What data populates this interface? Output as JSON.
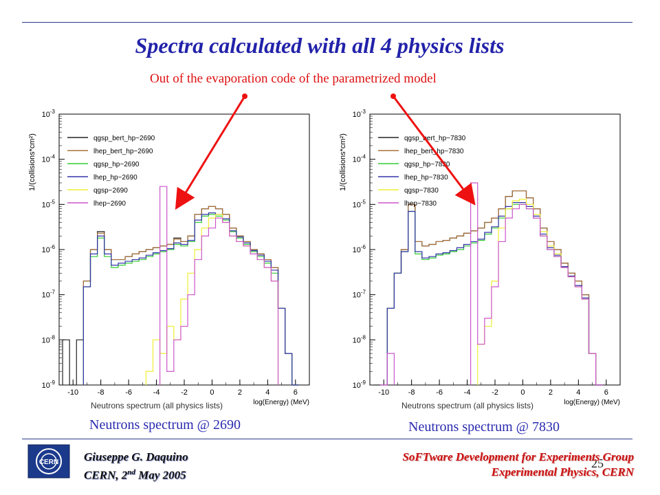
{
  "slide": {
    "title": "Spectra calculated with all 4 physics lists",
    "annotation": "Out of the evaporation code of the parametrized model",
    "page_number": "25",
    "footer_left": {
      "author": "Giuseppe G. Daquino",
      "place": "CERN, 2",
      "superscript": "nd",
      "date_rest": " May 2005"
    },
    "footer_right": {
      "line1": "SoFTware Development for Experiments Group",
      "line2": "Experimental Physics, CERN"
    },
    "logo_text": "CERN",
    "captions": [
      "Neutrons spectrum @ 2690",
      "Neutrons spectrum @ 7830"
    ],
    "colors": {
      "title": "#2222aa",
      "annotation": "#dd1111",
      "arrow": "#ee1111",
      "footer_right": "#cc1111",
      "caption": "#2a2ab0"
    }
  },
  "chart_data": [
    {
      "type": "line",
      "title": "Neutrons spectrum (all physics lists)",
      "xlabel": "log(Energy) (MeV)",
      "ylabel": "1/(collisions*cm²)",
      "y_scale": "log",
      "xlim": [
        -11,
        7
      ],
      "ylim": [
        1e-09,
        0.001
      ],
      "x_ticks": [
        -10,
        -8,
        -6,
        -4,
        -2,
        0,
        2,
        4,
        6
      ],
      "y_ticks": [
        "10^-9",
        "10^-8",
        "10^-7",
        "10^-6",
        "10^-5",
        "10^-4",
        "10^-3"
      ],
      "legend_position": "top-left",
      "x": [
        -10.5,
        -10,
        -9.5,
        -9,
        -8.5,
        -8,
        -7.5,
        -7,
        -6.5,
        -6,
        -5.5,
        -5,
        -4.5,
        -4,
        -3.5,
        -3,
        -2.5,
        -2,
        -1.5,
        -1,
        -0.5,
        0,
        0.5,
        1,
        1.5,
        2,
        2.5,
        3,
        3.5,
        4,
        4.5,
        5,
        5.5,
        6
      ],
      "series": [
        {
          "name": "qgsp_bert_hp−2690",
          "color": "#222222",
          "values": [
            1e-08,
            1e-09,
            1e-08,
            2e-07,
            1e-06,
            2.5e-06,
            1e-06,
            6e-07,
            6e-07,
            7e-07,
            8e-07,
            9e-07,
            1e-06,
            1.1e-06,
            1.2e-06,
            1.3e-06,
            1.8e-06,
            1.5e-06,
            2e-06,
            6e-06,
            8e-06,
            9e-06,
            8e-06,
            6e-06,
            3e-06,
            2e-06,
            1.5e-06,
            1e-06,
            8e-07,
            6e-07,
            4e-07,
            5e-08,
            5e-09,
            1e-09
          ]
        },
        {
          "name": "lhep_bert_hp−2690",
          "color": "#a8703a",
          "values": [
            null,
            null,
            null,
            2e-07,
            1e-06,
            2.3e-06,
            1e-06,
            6e-07,
            6e-07,
            7e-07,
            8e-07,
            9e-07,
            1e-06,
            1.1e-06,
            1.2e-06,
            1.3e-06,
            1.7e-06,
            1.5e-06,
            2e-06,
            6e-06,
            8e-06,
            9e-06,
            8e-06,
            6e-06,
            3e-06,
            2e-06,
            1.5e-06,
            1e-06,
            8e-07,
            6e-07,
            4e-07,
            5e-08,
            5e-09,
            1e-09
          ]
        },
        {
          "name": "qgsp_hp−2690",
          "color": "#33cc33",
          "values": [
            null,
            null,
            null,
            1.5e-07,
            7e-07,
            1.8e-06,
            7e-07,
            4e-07,
            4.5e-07,
            5e-07,
            5.5e-07,
            6e-07,
            7e-07,
            8e-07,
            9e-07,
            1e-06,
            1.3e-06,
            1.2e-06,
            1.5e-06,
            4e-06,
            5.5e-06,
            6e-06,
            5.5e-06,
            4.5e-06,
            2.5e-06,
            1.8e-06,
            1.3e-06,
            9e-07,
            7e-07,
            5e-07,
            3e-07,
            5e-08,
            5e-09,
            1e-09
          ]
        },
        {
          "name": "lhep_hp−2690",
          "color": "#3333aa",
          "values": [
            null,
            null,
            null,
            1.5e-07,
            8e-07,
            2e-06,
            8e-07,
            4.5e-07,
            5e-07,
            5.5e-07,
            6e-07,
            6.5e-07,
            7.5e-07,
            8.5e-07,
            9.5e-07,
            1.05e-06,
            1.4e-06,
            1.3e-06,
            1.6e-06,
            4.5e-06,
            6e-06,
            6.5e-06,
            6e-06,
            4.8e-06,
            2.6e-06,
            1.9e-06,
            1.4e-06,
            9.5e-07,
            7.5e-07,
            5.5e-07,
            3.5e-07,
            5e-08,
            5e-09,
            1e-09
          ]
        },
        {
          "name": "qgsp−2690",
          "color": "#eeee33",
          "values": [
            null,
            null,
            null,
            null,
            null,
            null,
            null,
            null,
            null,
            null,
            null,
            null,
            2e-09,
            1e-08,
            5e-09,
            2e-08,
            1e-08,
            8e-08,
            3e-07,
            1e-06,
            3e-06,
            5e-06,
            6e-06,
            4e-06,
            2e-06,
            1.5e-06,
            1.2e-06,
            8e-07,
            6e-07,
            4e-07,
            2e-07,
            null,
            null,
            null
          ]
        },
        {
          "name": "lhep−2690",
          "color": "#cc55cc",
          "values": [
            null,
            null,
            null,
            null,
            null,
            null,
            null,
            null,
            null,
            null,
            null,
            null,
            null,
            null,
            2.5e-05,
            2e-09,
            1e-08,
            2e-08,
            1e-07,
            6e-07,
            2e-06,
            3e-06,
            5e-06,
            4e-06,
            2e-06,
            1.5e-06,
            1.2e-06,
            8e-07,
            6e-07,
            4e-07,
            2e-07,
            null,
            null,
            null
          ]
        }
      ]
    },
    {
      "type": "line",
      "title": "Neutrons spectrum (all physics lists)",
      "xlabel": "log(Energy) (MeV)",
      "ylabel": "1/(collisions*cm²)",
      "y_scale": "log",
      "xlim": [
        -11,
        7
      ],
      "ylim": [
        1e-09,
        0.001
      ],
      "x_ticks": [
        -10,
        -8,
        -6,
        -4,
        -2,
        0,
        2,
        4,
        6
      ],
      "y_ticks": [
        "10^-9",
        "10^-8",
        "10^-7",
        "10^-6",
        "10^-5",
        "10^-4",
        "10^-3"
      ],
      "legend_position": "top-left",
      "x": [
        -10.5,
        -10,
        -9.5,
        -9,
        -8.5,
        -8,
        -7.5,
        -7,
        -6.5,
        -6,
        -5.5,
        -5,
        -4.5,
        -4,
        -3.5,
        -3,
        -2.5,
        -2,
        -1.5,
        -1,
        -0.5,
        0,
        0.5,
        1,
        1.5,
        2,
        2.5,
        3,
        3.5,
        4,
        4.5,
        5,
        5.5,
        6
      ],
      "series": [
        {
          "name": "qgsp_bert_hp−7830",
          "color": "#222222",
          "values": [
            1e-09,
            1e-09,
            5e-08,
            3e-07,
            1e-06,
            1e-05,
            1.5e-06,
            1.2e-06,
            1.3e-06,
            1.5e-06,
            1.6e-06,
            1.8e-06,
            2e-06,
            2.3e-06,
            2.6e-06,
            3e-06,
            4e-06,
            5e-06,
            8e-06,
            1.5e-05,
            2e-05,
            2e-05,
            1.4e-05,
            8e-06,
            3e-06,
            1.5e-06,
            1e-06,
            5e-07,
            3e-07,
            2e-07,
            1e-07,
            5e-09,
            1e-09,
            null
          ]
        },
        {
          "name": "lhep_bert_hp−7830",
          "color": "#a8703a",
          "values": [
            null,
            null,
            5e-08,
            3e-07,
            1e-06,
            1e-05,
            1.5e-06,
            1.2e-06,
            1.3e-06,
            1.5e-06,
            1.6e-06,
            1.8e-06,
            2e-06,
            2.3e-06,
            2.6e-06,
            3e-06,
            4e-06,
            5e-06,
            8e-06,
            1.5e-05,
            2e-05,
            2e-05,
            1.4e-05,
            8e-06,
            3e-06,
            1.5e-06,
            1e-06,
            5e-07,
            3e-07,
            2e-07,
            1e-07,
            5e-09,
            1e-09,
            null
          ]
        },
        {
          "name": "qgsp_hp−7830",
          "color": "#33cc33",
          "values": [
            null,
            null,
            5e-08,
            3e-07,
            9e-07,
            7e-06,
            8e-07,
            6e-07,
            6.5e-07,
            7.5e-07,
            8e-07,
            9e-07,
            1e-06,
            1.2e-06,
            1.4e-06,
            1.6e-06,
            2.2e-06,
            3e-06,
            5e-06,
            8e-06,
            1e-05,
            1e-05,
            8e-06,
            5e-06,
            2e-06,
            1e-06,
            7e-07,
            4e-07,
            2.5e-07,
            1.5e-07,
            8e-08,
            5e-09,
            1e-09,
            null
          ]
        },
        {
          "name": "lhep_hp−7830",
          "color": "#3333aa",
          "values": [
            null,
            null,
            5e-08,
            3e-07,
            9e-07,
            7e-06,
            9e-07,
            6.5e-07,
            7e-07,
            8e-07,
            8.5e-07,
            9.5e-07,
            1.1e-06,
            1.3e-06,
            1.5e-06,
            1.7e-06,
            2.4e-06,
            3.2e-06,
            5.5e-06,
            9e-06,
            1.1e-05,
            1.1e-05,
            9e-06,
            5.5e-06,
            2.2e-06,
            1.1e-06,
            7.5e-07,
            4.2e-07,
            2.6e-07,
            1.6e-07,
            8.5e-08,
            5e-09,
            1e-09,
            null
          ]
        },
        {
          "name": "qgsp−7830",
          "color": "#eeee33",
          "values": [
            null,
            null,
            null,
            null,
            null,
            null,
            null,
            null,
            null,
            null,
            null,
            null,
            null,
            null,
            null,
            8e-09,
            2e-08,
            2e-07,
            3e-06,
            8e-06,
            1.2e-05,
            1.3e-05,
            1e-05,
            6e-06,
            2.5e-06,
            1.2e-06,
            8e-07,
            4e-07,
            2.5e-07,
            1.5e-07,
            8e-08,
            5e-09,
            null,
            null
          ]
        },
        {
          "name": "lhep−7830",
          "color": "#cc55cc",
          "values": [
            null,
            1e-09,
            5e-09,
            null,
            null,
            null,
            null,
            null,
            null,
            null,
            null,
            null,
            null,
            null,
            3e-05,
            8e-09,
            3e-08,
            1.5e-07,
            1.5e-06,
            5e-06,
            8e-06,
            1e-05,
            8e-06,
            5e-06,
            2e-06,
            1e-06,
            7e-07,
            4e-07,
            2.5e-07,
            1.5e-07,
            8e-08,
            5e-09,
            1e-09,
            null
          ]
        }
      ]
    }
  ]
}
